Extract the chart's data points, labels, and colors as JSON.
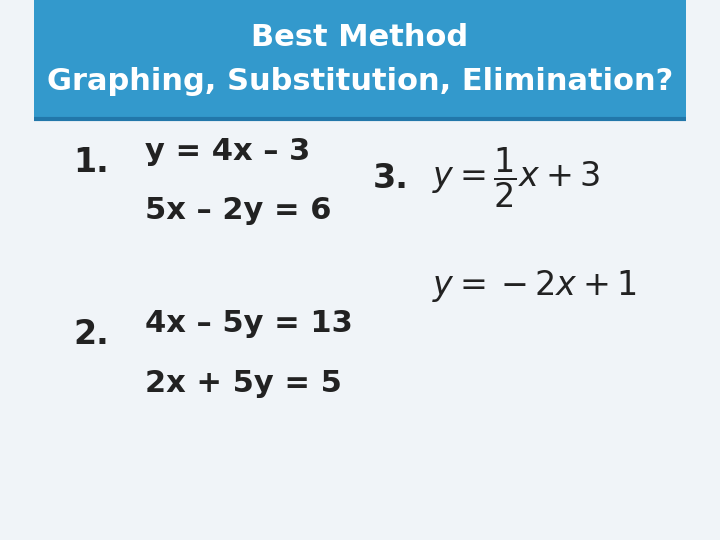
{
  "title_line1": "Best Method",
  "title_line2": "Graphing, Substitution, Elimination?",
  "title_bg_color": "#3399CC",
  "title_text_color": "#FFFFFF",
  "body_bg_color": "#F0F4F8",
  "separator_color": "#2277AA",
  "item1_label": "1.",
  "item1_line1": "y = 4x – 3",
  "item1_line2": "5x – 2y = 6",
  "item2_label": "2.",
  "item2_line1": "4x – 5y = 13",
  "item2_line2": "2x + 5y = 5",
  "item3_label": "3.",
  "item3_eq1_latex": "$y = \\dfrac{1}{2}x + 3$",
  "item3_eq2_latex": "$y = -2x + 1$",
  "text_color": "#222222",
  "label_color": "#222222",
  "font_size_title": 22,
  "font_size_body": 22,
  "font_size_label": 24,
  "font_size_math": 20
}
